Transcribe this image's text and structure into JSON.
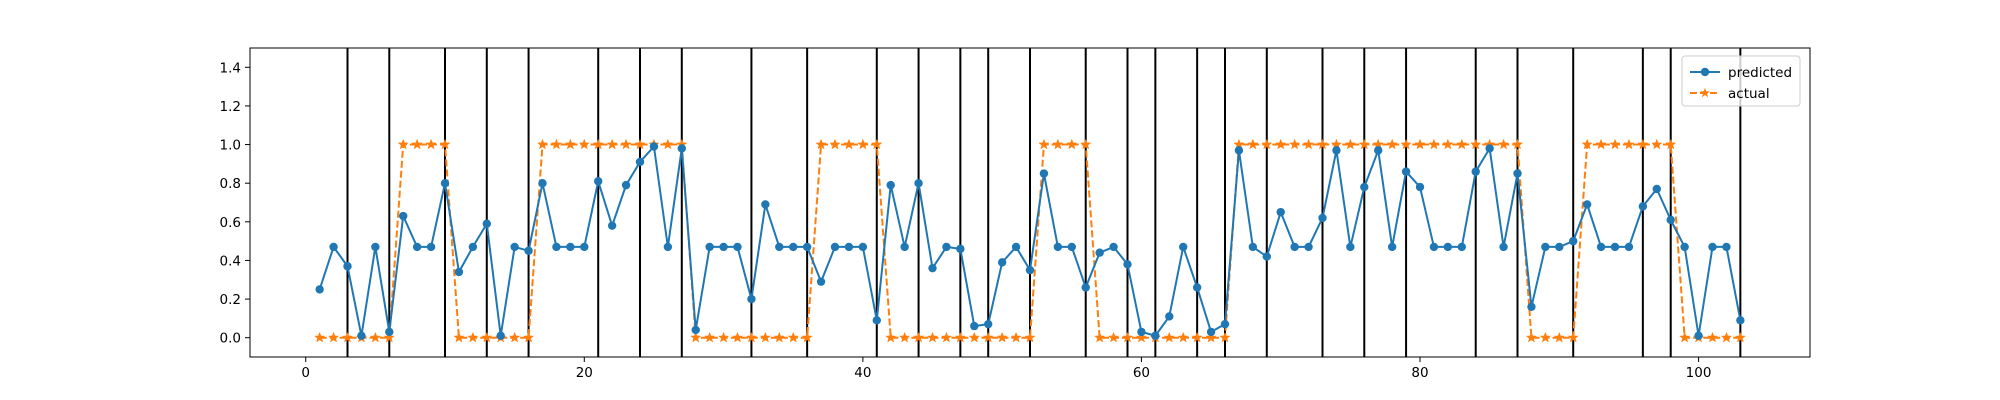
{
  "chart_data": {
    "type": "line",
    "title": "",
    "xlabel": "",
    "ylabel": "",
    "xlim": [
      -4,
      108
    ],
    "ylim": [
      -0.1,
      1.5
    ],
    "xticks": [
      0,
      20,
      40,
      60,
      80,
      100
    ],
    "yticks": [
      0.0,
      0.2,
      0.4,
      0.6,
      0.8,
      1.0,
      1.2,
      1.4
    ],
    "xtick_labels": [
      "0",
      "20",
      "40",
      "60",
      "80",
      "100"
    ],
    "ytick_labels": [
      "0.0",
      "0.2",
      "0.4",
      "0.6",
      "0.8",
      "1.0",
      "1.2",
      "1.4"
    ],
    "grid": false,
    "legend_position": "top-right",
    "x": [
      1,
      2,
      3,
      4,
      5,
      6,
      7,
      8,
      9,
      10,
      11,
      12,
      13,
      14,
      15,
      16,
      17,
      18,
      19,
      20,
      21,
      22,
      23,
      24,
      25,
      26,
      27,
      28,
      29,
      30,
      31,
      32,
      33,
      34,
      35,
      36,
      37,
      38,
      39,
      40,
      41,
      42,
      43,
      44,
      45,
      46,
      47,
      48,
      49,
      50,
      51,
      52,
      53,
      54,
      55,
      56,
      57,
      58,
      59,
      60,
      61,
      62,
      63,
      64,
      65,
      66,
      67,
      68,
      69,
      70,
      71,
      72,
      73,
      74,
      75,
      76,
      77,
      78,
      79,
      80,
      81,
      82,
      83,
      84,
      85,
      86,
      87,
      88,
      89,
      90,
      91,
      92,
      93,
      94,
      95,
      96,
      97,
      98,
      99,
      100,
      101,
      102,
      103
    ],
    "series": [
      {
        "name": "predicted",
        "color": "#1f77b4",
        "linestyle": "solid",
        "marker": "circle",
        "values": [
          0.25,
          0.47,
          0.37,
          0.01,
          0.47,
          0.03,
          0.63,
          0.47,
          0.47,
          0.8,
          0.34,
          0.47,
          0.59,
          0.01,
          0.47,
          0.45,
          0.8,
          0.47,
          0.47,
          0.47,
          0.81,
          0.58,
          0.79,
          0.91,
          0.99,
          0.47,
          0.98,
          0.04,
          0.47,
          0.47,
          0.47,
          0.2,
          0.69,
          0.47,
          0.47,
          0.47,
          0.29,
          0.47,
          0.47,
          0.47,
          0.09,
          0.79,
          0.47,
          0.8,
          0.36,
          0.47,
          0.46,
          0.06,
          0.07,
          0.39,
          0.47,
          0.35,
          0.85,
          0.47,
          0.47,
          0.26,
          0.44,
          0.47,
          0.38,
          0.03,
          0.01,
          0.11,
          0.47,
          0.26,
          0.03,
          0.07,
          0.97,
          0.47,
          0.42,
          0.65,
          0.47,
          0.47,
          0.62,
          0.97,
          0.47,
          0.78,
          0.97,
          0.47,
          0.86,
          0.78,
          0.47,
          0.47,
          0.47,
          0.86,
          0.98,
          0.47,
          0.85,
          0.16,
          0.47,
          0.47,
          0.5,
          0.69,
          0.47,
          0.47,
          0.47,
          0.68,
          0.77,
          0.61,
          0.47,
          0.01,
          0.47,
          0.47,
          0.09
        ]
      },
      {
        "name": "actual",
        "color": "#ff7f0e",
        "linestyle": "dashed",
        "marker": "star",
        "values": [
          0,
          0,
          0,
          0,
          0,
          0,
          1,
          1,
          1,
          1,
          0,
          0,
          0,
          0,
          0,
          0,
          1,
          1,
          1,
          1,
          1,
          1,
          1,
          1,
          1,
          1,
          1,
          0,
          0,
          0,
          0,
          0,
          0,
          0,
          0,
          0,
          1,
          1,
          1,
          1,
          1,
          0,
          0,
          0,
          0,
          0,
          0,
          0,
          0,
          0,
          0,
          0,
          1,
          1,
          1,
          1,
          0,
          0,
          0,
          0,
          0,
          0,
          0,
          0,
          0,
          0,
          1,
          1,
          1,
          1,
          1,
          1,
          1,
          1,
          1,
          1,
          1,
          1,
          1,
          1,
          1,
          1,
          1,
          1,
          1,
          1,
          1,
          0,
          0,
          0,
          0,
          1,
          1,
          1,
          1,
          1,
          1,
          1,
          0,
          0,
          0,
          0,
          0
        ]
      }
    ],
    "vertical_lines": {
      "color": "#000000",
      "x": [
        3,
        6,
        10,
        13,
        16,
        21,
        24,
        27,
        32,
        36,
        41,
        44,
        47,
        49,
        52,
        56,
        59,
        61,
        64,
        66,
        69,
        73,
        76,
        79,
        84,
        87,
        91,
        96,
        98,
        103
      ]
    }
  }
}
